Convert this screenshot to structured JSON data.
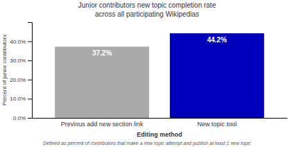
{
  "chart_data": {
    "type": "bar",
    "title": "Junior contributors new topic completion rate",
    "subtitle": "across all participating Wikipedias",
    "x_label": "Editing method",
    "y_label": "Percent of junior contributors",
    "annotations": [
      "Defined as percent of contributors that make a new topic attempt and publish at least 1 new topic"
    ],
    "categories": [
      "Previous add new section link",
      "New topic tool"
    ],
    "values": [
      37.2,
      44.2
    ],
    "value_labels": [
      "37.2%",
      "44.2%"
    ],
    "data_labels": true,
    "colors": [
      "#aaaaaa",
      "#0000bb"
    ],
    "ylim": [
      0,
      50
    ],
    "yticks": [
      {
        "value": 0,
        "label": "0.0%"
      },
      {
        "value": 10,
        "label": "10.0%"
      },
      {
        "value": 20,
        "label": "20.0%"
      },
      {
        "value": 30,
        "label": "30.0%"
      },
      {
        "value": 40,
        "label": "40.0%"
      }
    ],
    "grid": false
  }
}
